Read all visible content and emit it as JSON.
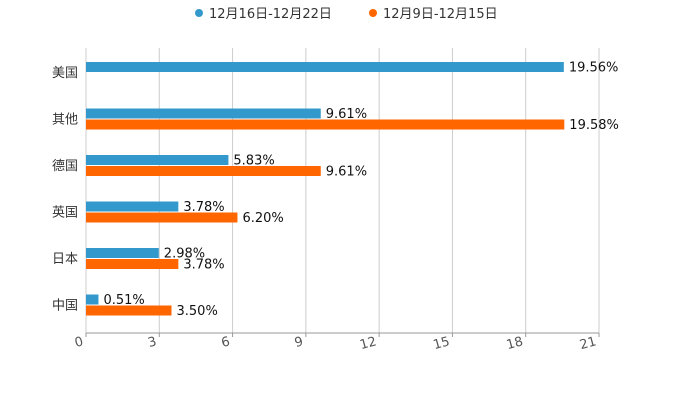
{
  "chart_data": {
    "type": "bar",
    "orientation": "horizontal",
    "categories": [
      "美国",
      "其他",
      "德国",
      "英国",
      "日本",
      "中国"
    ],
    "series": [
      {
        "name": "12月16日-12月22日",
        "color": "#3399cc",
        "values": [
          19.56,
          9.61,
          5.83,
          3.78,
          2.98,
          0.51
        ],
        "labels": [
          "19.56%",
          "9.61%",
          "5.83%",
          "3.78%",
          "2.98%",
          "0.51%"
        ]
      },
      {
        "name": "12月9日-12月15日",
        "color": "#ff6600",
        "values": [
          null,
          19.58,
          9.61,
          6.2,
          3.78,
          3.5
        ],
        "labels": [
          null,
          "19.58%",
          "9.61%",
          "6.20%",
          "3.78%",
          "3.50%"
        ]
      }
    ],
    "xlim": [
      0,
      21
    ],
    "xticks": [
      0,
      3,
      6,
      9,
      12,
      15,
      18,
      21
    ],
    "xtick_labels": [
      "0",
      "3",
      "6",
      "9",
      "12",
      "15",
      "18",
      "21"
    ],
    "grid": true,
    "legend_position": "top-center",
    "title": "",
    "xlabel": "",
    "ylabel": ""
  }
}
